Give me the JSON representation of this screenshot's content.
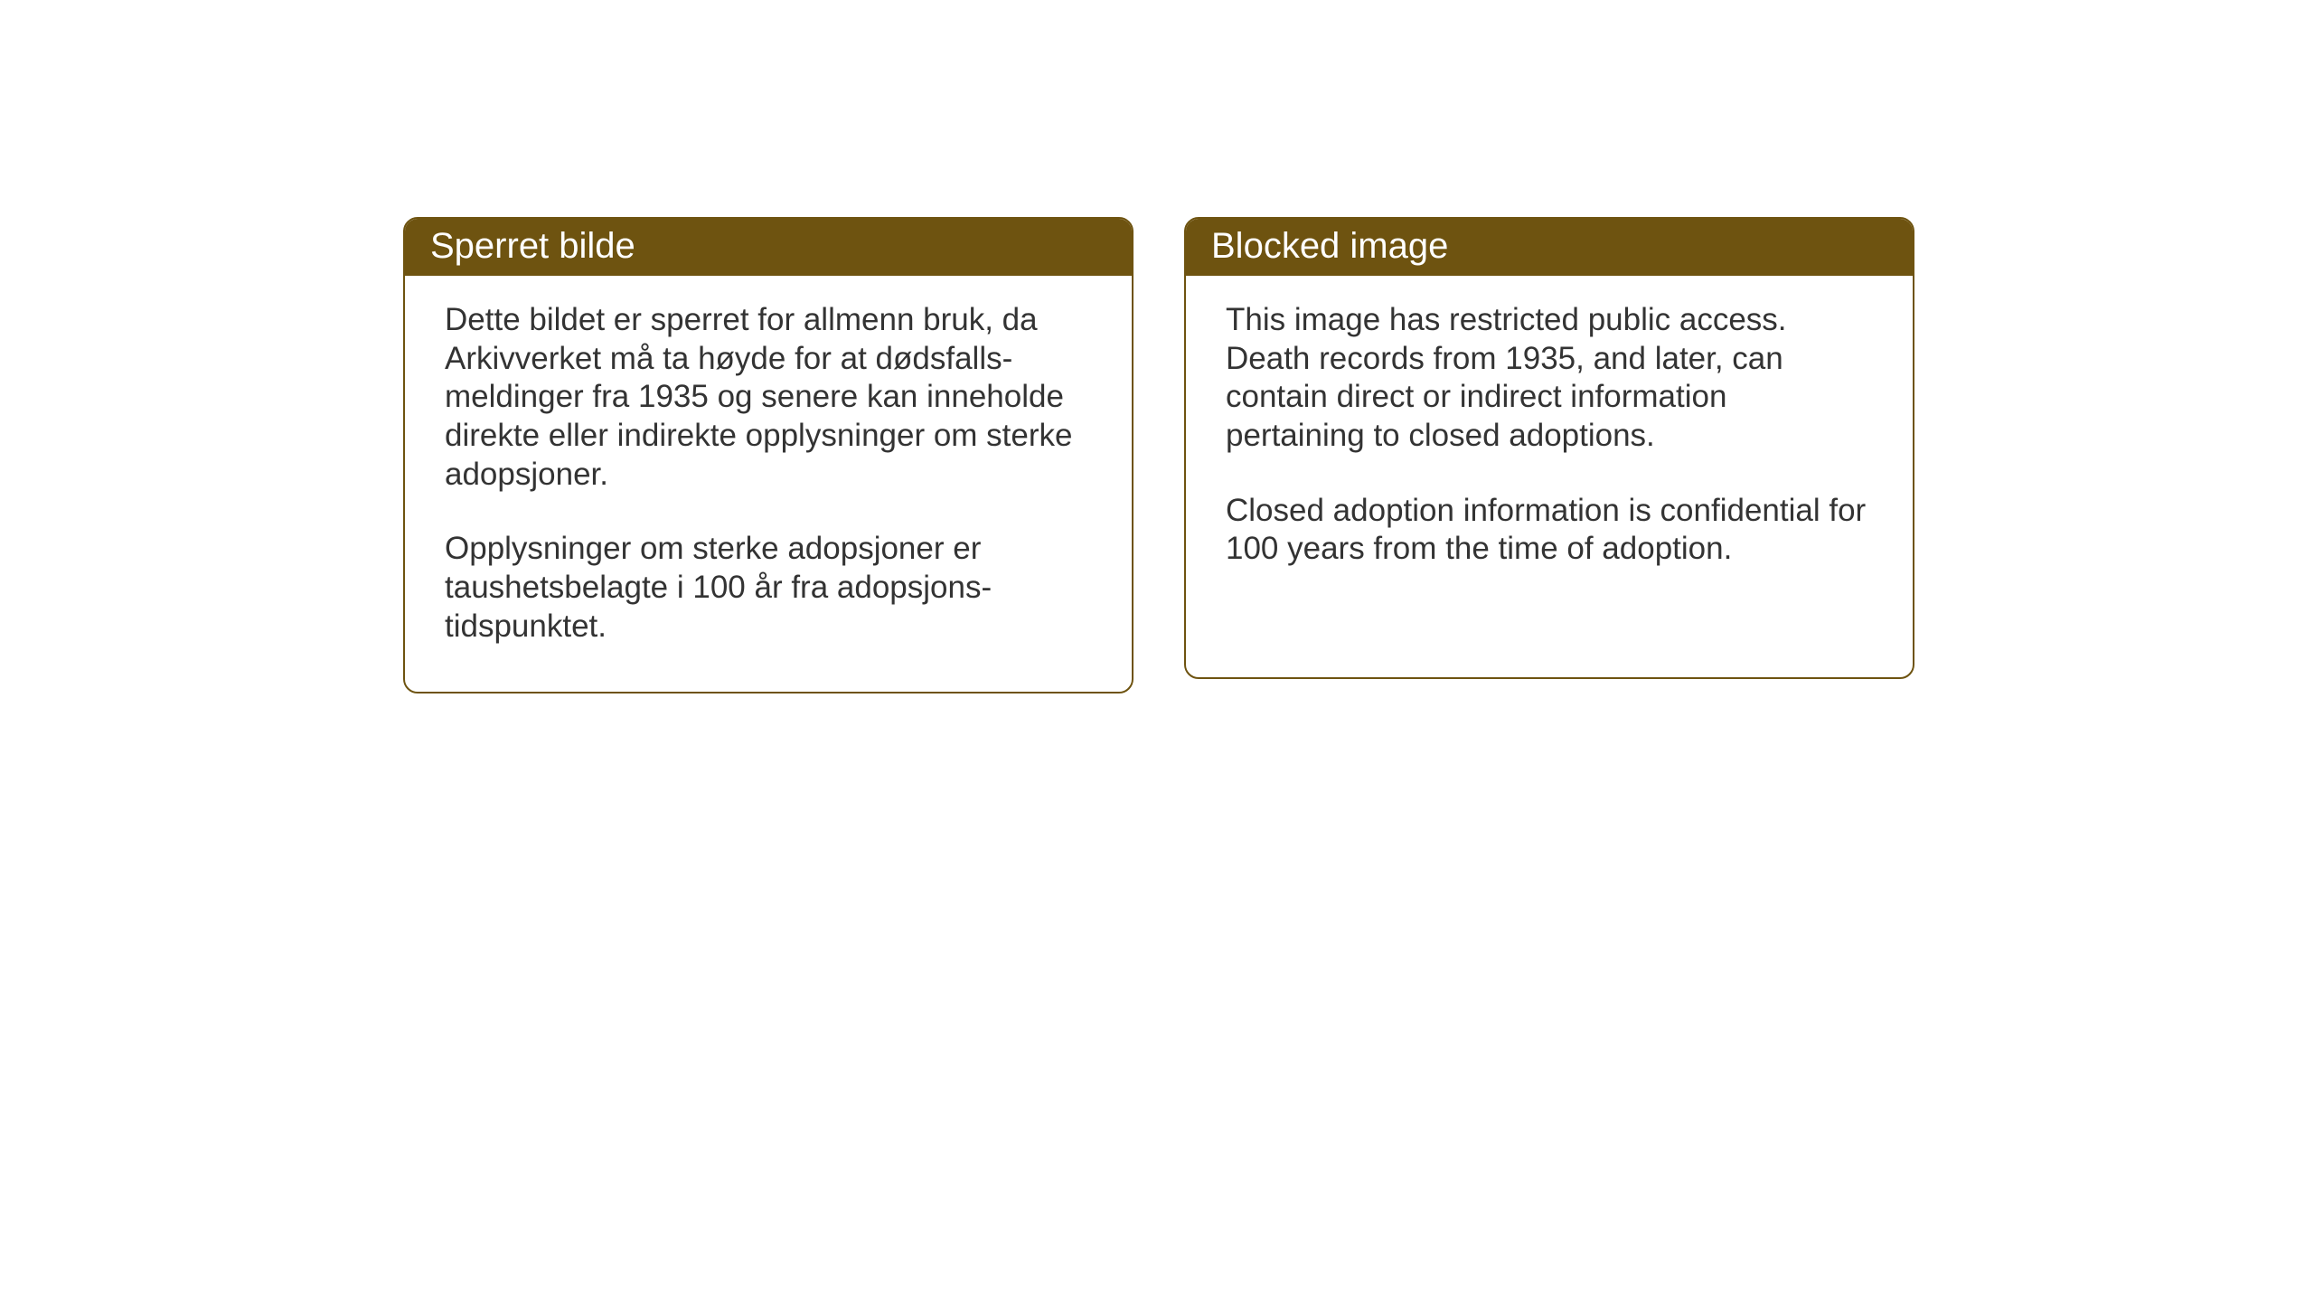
{
  "cards": {
    "norwegian": {
      "title": "Sperret bilde",
      "paragraph1": "Dette bildet er sperret for allmenn bruk, da Arkivverket må ta høyde for at dødsfalls-meldinger fra 1935 og senere kan inneholde direkte eller indirekte opplysninger om sterke adopsjoner.",
      "paragraph2": "Opplysninger om sterke adopsjoner er taushetsbelagte i 100 år fra adopsjons-tidspunktet."
    },
    "english": {
      "title": "Blocked image",
      "paragraph1": "This image has restricted public access. Death records from 1935, and later, can contain direct or indirect information pertaining to closed adoptions.",
      "paragraph2": "Closed adoption information is confidential for 100 years from the time of adoption."
    }
  },
  "styling": {
    "header_background": "#6e5310",
    "header_text_color": "#ffffff",
    "border_color": "#6e5310",
    "body_text_color": "#333333",
    "background_color": "#ffffff",
    "border_radius": 16,
    "header_fontsize": 40,
    "body_fontsize": 35
  }
}
